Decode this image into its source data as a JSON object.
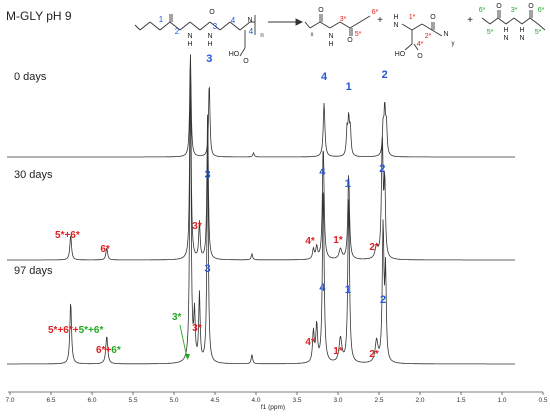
{
  "chart_data": {
    "type": "line",
    "title": "M-GLY pH 9",
    "xlabel": "f1 (ppm)",
    "xlim": [
      7.0,
      0.5
    ],
    "x_reversed": true,
    "xticks": [
      "7.0",
      "6.5",
      "6.0",
      "5.5",
      "5.0",
      "4.5",
      "4.0",
      "3.5",
      "3.0",
      "2.5",
      "2.0",
      "1.5",
      "1.0",
      "0.5"
    ],
    "colors": {
      "trace": "#333333",
      "blue": "#2457d6",
      "red": "#e02020",
      "green": "#22aa22",
      "axis": "#555555"
    },
    "series": [
      {
        "name": "0 days",
        "peaks": [
          {
            "ppm": 4.8,
            "h": 1.0,
            "w": 0.01
          },
          {
            "ppm": 4.57,
            "h": 0.72,
            "w": 0.01
          },
          {
            "ppm": 4.03,
            "h": 0.04,
            "w": 0.01
          },
          {
            "ppm": 3.17,
            "h": 0.52,
            "w": 0.012
          },
          {
            "ppm": 2.89,
            "h": 0.24,
            "w": 0.01
          },
          {
            "ppm": 2.87,
            "h": 0.34,
            "w": 0.01
          },
          {
            "ppm": 2.85,
            "h": 0.26,
            "w": 0.01
          },
          {
            "ppm": 2.45,
            "h": 0.28,
            "w": 0.01
          },
          {
            "ppm": 2.43,
            "h": 0.44,
            "w": 0.01
          },
          {
            "ppm": 2.41,
            "h": 0.3,
            "w": 0.01
          }
        ],
        "labels": [
          {
            "text": "3",
            "ppm": 4.57,
            "color": "blue"
          },
          {
            "text": "4",
            "ppm": 3.17,
            "color": "blue"
          },
          {
            "text": "1",
            "ppm": 2.87,
            "color": "blue"
          },
          {
            "text": "2",
            "ppm": 2.43,
            "color": "blue"
          }
        ]
      },
      {
        "name": "30 days",
        "peaks": [
          {
            "ppm": 6.26,
            "h": 0.12,
            "w": 0.012
          },
          {
            "ppm": 5.82,
            "h": 0.06,
            "w": 0.012
          },
          {
            "ppm": 4.8,
            "h": 1.0,
            "w": 0.01
          },
          {
            "ppm": 4.69,
            "h": 0.18,
            "w": 0.01
          },
          {
            "ppm": 4.59,
            "h": 0.72,
            "w": 0.01
          },
          {
            "ppm": 4.05,
            "h": 0.03,
            "w": 0.01
          },
          {
            "ppm": 3.3,
            "h": 0.05,
            "w": 0.012
          },
          {
            "ppm": 3.26,
            "h": 0.06,
            "w": 0.012
          },
          {
            "ppm": 3.18,
            "h": 0.56,
            "w": 0.012
          },
          {
            "ppm": 2.97,
            "h": 0.05,
            "w": 0.02
          },
          {
            "ppm": 2.87,
            "h": 0.42,
            "w": 0.012
          },
          {
            "ppm": 2.53,
            "h": 0.06,
            "w": 0.02
          },
          {
            "ppm": 2.46,
            "h": 0.58,
            "w": 0.012
          },
          {
            "ppm": 2.43,
            "h": 0.36,
            "w": 0.01
          }
        ],
        "labels": [
          {
            "text": "5*+6*",
            "ppm": 6.3,
            "color": "red"
          },
          {
            "text": "6*",
            "ppm": 5.84,
            "color": "red"
          },
          {
            "text": "3*",
            "ppm": 4.72,
            "color": "red"
          },
          {
            "text": "3",
            "ppm": 4.59,
            "color": "blue"
          },
          {
            "text": "4*",
            "ppm": 3.34,
            "color": "red"
          },
          {
            "text": "4",
            "ppm": 3.19,
            "color": "blue"
          },
          {
            "text": "1*",
            "ppm": 3.0,
            "color": "red"
          },
          {
            "text": "1",
            "ppm": 2.88,
            "color": "blue"
          },
          {
            "text": "2*",
            "ppm": 2.56,
            "color": "red"
          },
          {
            "text": "2",
            "ppm": 2.46,
            "color": "blue"
          }
        ]
      },
      {
        "name": "97 days",
        "peaks": [
          {
            "ppm": 6.26,
            "h": 0.2,
            "w": 0.012
          },
          {
            "ppm": 5.82,
            "h": 0.09,
            "w": 0.014
          },
          {
            "ppm": 4.8,
            "h": 1.0,
            "w": 0.01
          },
          {
            "ppm": 4.75,
            "h": 0.15,
            "w": 0.01
          },
          {
            "ppm": 4.69,
            "h": 0.22,
            "w": 0.01
          },
          {
            "ppm": 4.59,
            "h": 0.72,
            "w": 0.01
          },
          {
            "ppm": 4.05,
            "h": 0.03,
            "w": 0.01
          },
          {
            "ppm": 3.3,
            "h": 0.1,
            "w": 0.012
          },
          {
            "ppm": 3.26,
            "h": 0.12,
            "w": 0.012
          },
          {
            "ppm": 3.18,
            "h": 0.58,
            "w": 0.012
          },
          {
            "ppm": 2.97,
            "h": 0.08,
            "w": 0.02
          },
          {
            "ppm": 2.87,
            "h": 0.54,
            "w": 0.012
          },
          {
            "ppm": 2.53,
            "h": 0.07,
            "w": 0.02
          },
          {
            "ppm": 2.45,
            "h": 0.44,
            "w": 0.012
          },
          {
            "ppm": 2.42,
            "h": 0.28,
            "w": 0.01
          }
        ],
        "labels": [
          {
            "text": "3",
            "ppm": 4.59,
            "color": "blue"
          },
          {
            "text": "3*",
            "ppm": 4.72,
            "color": "red"
          },
          {
            "text": "4*",
            "ppm": 3.34,
            "color": "red"
          },
          {
            "text": "4",
            "ppm": 3.19,
            "color": "blue"
          },
          {
            "text": "1*",
            "ppm": 3.0,
            "color": "red"
          },
          {
            "text": "1",
            "ppm": 2.88,
            "color": "blue"
          },
          {
            "text": "2*",
            "ppm": 2.56,
            "color": "red"
          },
          {
            "text": "2",
            "ppm": 2.45,
            "color": "blue"
          }
        ],
        "extra_labels": {
          "combo_red": "5*+6*+",
          "combo_green": "5*+6*",
          "six_red": "6*+",
          "six_green": "6*",
          "three_green": "3*",
          "combo_ppm": 6.26,
          "six_ppm": 5.82,
          "arrow_target_ppm": 4.75
        }
      }
    ],
    "scheme": {
      "polymer_left_numbers": [
        "1",
        "2",
        "3",
        "4"
      ],
      "product_red_numbers": [
        "3*",
        "5*",
        "6*",
        "1*",
        "2*",
        "4*"
      ],
      "product_green_numbers": [
        "6*",
        "5*",
        "3*",
        "6*",
        "5*"
      ],
      "atoms": [
        "N",
        "H",
        "O",
        "HO",
        "H",
        "N",
        "HO",
        "O",
        "H",
        "N",
        "H",
        "N",
        "H",
        "N"
      ],
      "operators": [
        "+",
        "+"
      ],
      "subscripts": [
        "n",
        "x",
        "y"
      ]
    }
  }
}
